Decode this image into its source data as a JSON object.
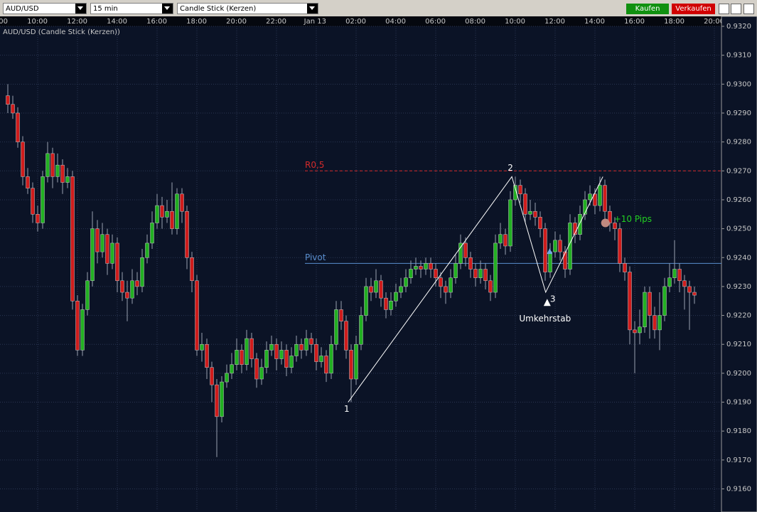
{
  "toolbar": {
    "symbol": "AUD/USD",
    "interval": "15 min",
    "chart_style": "Candle Stick (Kerzen)",
    "buy": "Kaufen",
    "sell": "Verkaufen"
  },
  "chart_data": {
    "type": "candlestick",
    "title": "AUD/USD (Candle Stick (Kerzen))",
    "time_labels": [
      "00",
      "10:00",
      "12:00",
      "14:00",
      "16:00",
      "18:00",
      "20:00",
      "22:00",
      "Jan 13",
      "02:00",
      "04:00",
      "06:00",
      "08:00",
      "10:00",
      "12:00",
      "14:00",
      "16:00",
      "18:00",
      "20:00"
    ],
    "up_color": "#22b022",
    "down_color": "#d01c1c",
    "candles": [
      [
        0.9296,
        0.93,
        0.929,
        0.9293
      ],
      [
        0.9293,
        0.9296,
        0.9288,
        0.929
      ],
      [
        0.929,
        0.9292,
        0.9278,
        0.928
      ],
      [
        0.928,
        0.9282,
        0.9265,
        0.9268
      ],
      [
        0.9268,
        0.9271,
        0.9262,
        0.9264
      ],
      [
        0.9264,
        0.9266,
        0.9252,
        0.9255
      ],
      [
        0.9255,
        0.9258,
        0.9249,
        0.9252
      ],
      [
        0.9252,
        0.927,
        0.925,
        0.9268
      ],
      [
        0.9268,
        0.928,
        0.9266,
        0.9276
      ],
      [
        0.9276,
        0.9278,
        0.9264,
        0.9268
      ],
      [
        0.9268,
        0.9276,
        0.9266,
        0.9272
      ],
      [
        0.9272,
        0.9274,
        0.9262,
        0.9266
      ],
      [
        0.9266,
        0.9271,
        0.9264,
        0.9268
      ],
      [
        0.9268,
        0.927,
        0.9222,
        0.9225
      ],
      [
        0.9225,
        0.9227,
        0.9206,
        0.9208
      ],
      [
        0.9208,
        0.9224,
        0.9206,
        0.9222
      ],
      [
        0.9222,
        0.9235,
        0.922,
        0.9232
      ],
      [
        0.9232,
        0.9256,
        0.923,
        0.925
      ],
      [
        0.925,
        0.9253,
        0.9238,
        0.9242
      ],
      [
        0.9242,
        0.9252,
        0.924,
        0.9248
      ],
      [
        0.9248,
        0.925,
        0.9234,
        0.9238
      ],
      [
        0.9238,
        0.9248,
        0.9236,
        0.9245
      ],
      [
        0.9245,
        0.9247,
        0.9228,
        0.9232
      ],
      [
        0.9232,
        0.9235,
        0.9225,
        0.9228
      ],
      [
        0.9228,
        0.9232,
        0.9218,
        0.9226
      ],
      [
        0.9226,
        0.9236,
        0.9224,
        0.9232
      ],
      [
        0.9232,
        0.9235,
        0.9227,
        0.923
      ],
      [
        0.923,
        0.9243,
        0.9228,
        0.924
      ],
      [
        0.924,
        0.9248,
        0.9238,
        0.9245
      ],
      [
        0.9245,
        0.9256,
        0.9243,
        0.9252
      ],
      [
        0.9252,
        0.9262,
        0.925,
        0.9258
      ],
      [
        0.9258,
        0.9261,
        0.925,
        0.9254
      ],
      [
        0.9254,
        0.926,
        0.9252,
        0.9256
      ],
      [
        0.9256,
        0.9266,
        0.9248,
        0.925
      ],
      [
        0.925,
        0.9264,
        0.9248,
        0.9262
      ],
      [
        0.9262,
        0.9264,
        0.9252,
        0.9256
      ],
      [
        0.9256,
        0.9258,
        0.9236,
        0.924
      ],
      [
        0.924,
        0.9242,
        0.9228,
        0.9232
      ],
      [
        0.9232,
        0.9234,
        0.9206,
        0.9208
      ],
      [
        0.9208,
        0.9214,
        0.9204,
        0.921
      ],
      [
        0.921,
        0.9212,
        0.9198,
        0.9202
      ],
      [
        0.9202,
        0.9204,
        0.919,
        0.9196
      ],
      [
        0.9196,
        0.9198,
        0.9171,
        0.9185
      ],
      [
        0.9185,
        0.9199,
        0.9183,
        0.9197
      ],
      [
        0.9197,
        0.9203,
        0.9195,
        0.92
      ],
      [
        0.92,
        0.9207,
        0.9198,
        0.9203
      ],
      [
        0.9203,
        0.9212,
        0.9201,
        0.9208
      ],
      [
        0.9208,
        0.921,
        0.92,
        0.9203
      ],
      [
        0.9203,
        0.9215,
        0.9201,
        0.9212
      ],
      [
        0.9212,
        0.9214,
        0.9202,
        0.9205
      ],
      [
        0.9205,
        0.9207,
        0.9195,
        0.9198
      ],
      [
        0.9198,
        0.9205,
        0.9196,
        0.9202
      ],
      [
        0.9202,
        0.9211,
        0.92,
        0.9208
      ],
      [
        0.9208,
        0.9213,
        0.9206,
        0.921
      ],
      [
        0.921,
        0.9212,
        0.9201,
        0.9205
      ],
      [
        0.9205,
        0.9211,
        0.9203,
        0.9208
      ],
      [
        0.9208,
        0.921,
        0.9199,
        0.9202
      ],
      [
        0.9202,
        0.9209,
        0.92,
        0.9206
      ],
      [
        0.9206,
        0.9213,
        0.9204,
        0.921
      ],
      [
        0.921,
        0.9212,
        0.9205,
        0.9208
      ],
      [
        0.9208,
        0.9215,
        0.9206,
        0.9212
      ],
      [
        0.9212,
        0.9214,
        0.9207,
        0.921
      ],
      [
        0.921,
        0.9212,
        0.9201,
        0.9204
      ],
      [
        0.9204,
        0.9209,
        0.9202,
        0.9206
      ],
      [
        0.9206,
        0.9208,
        0.9197,
        0.92
      ],
      [
        0.92,
        0.9213,
        0.9198,
        0.921
      ],
      [
        0.921,
        0.9225,
        0.9208,
        0.9222
      ],
      [
        0.9222,
        0.9225,
        0.9215,
        0.9218
      ],
      [
        0.9218,
        0.922,
        0.9205,
        0.9208
      ],
      [
        0.9208,
        0.921,
        0.919,
        0.9198
      ],
      [
        0.9198,
        0.9213,
        0.9196,
        0.921
      ],
      [
        0.921,
        0.9223,
        0.9208,
        0.922
      ],
      [
        0.922,
        0.9233,
        0.9218,
        0.923
      ],
      [
        0.923,
        0.9233,
        0.9225,
        0.9228
      ],
      [
        0.9228,
        0.9236,
        0.9226,
        0.9232
      ],
      [
        0.9232,
        0.9234,
        0.9223,
        0.9226
      ],
      [
        0.9226,
        0.9228,
        0.9219,
        0.9222
      ],
      [
        0.9222,
        0.9228,
        0.922,
        0.9225
      ],
      [
        0.9225,
        0.9231,
        0.9223,
        0.9228
      ],
      [
        0.9228,
        0.9233,
        0.9226,
        0.923
      ],
      [
        0.923,
        0.9236,
        0.9228,
        0.9233
      ],
      [
        0.9233,
        0.9239,
        0.9231,
        0.9236
      ],
      [
        0.9236,
        0.924,
        0.9234,
        0.9237
      ],
      [
        0.9237,
        0.9239,
        0.9233,
        0.9236
      ],
      [
        0.9236,
        0.924,
        0.9234,
        0.9238
      ],
      [
        0.9238,
        0.924,
        0.9233,
        0.9236
      ],
      [
        0.9236,
        0.9238,
        0.923,
        0.9233
      ],
      [
        0.9233,
        0.9235,
        0.9226,
        0.923
      ],
      [
        0.923,
        0.9232,
        0.9224,
        0.9228
      ],
      [
        0.9228,
        0.9236,
        0.9226,
        0.9233
      ],
      [
        0.9233,
        0.9241,
        0.9231,
        0.9238
      ],
      [
        0.9238,
        0.9248,
        0.9236,
        0.9245
      ],
      [
        0.9245,
        0.9247,
        0.9237,
        0.924
      ],
      [
        0.924,
        0.9242,
        0.9233,
        0.9236
      ],
      [
        0.9236,
        0.9238,
        0.923,
        0.9233
      ],
      [
        0.9233,
        0.9239,
        0.9231,
        0.9236
      ],
      [
        0.9236,
        0.9238,
        0.9229,
        0.9232
      ],
      [
        0.9232,
        0.9234,
        0.9225,
        0.9228
      ],
      [
        0.9228,
        0.9248,
        0.9226,
        0.9245
      ],
      [
        0.9245,
        0.9252,
        0.9243,
        0.9248
      ],
      [
        0.9248,
        0.925,
        0.9241,
        0.9244
      ],
      [
        0.9244,
        0.9263,
        0.9242,
        0.926
      ],
      [
        0.926,
        0.9268,
        0.9258,
        0.9265
      ],
      [
        0.9265,
        0.9267,
        0.9259,
        0.9262
      ],
      [
        0.9262,
        0.9264,
        0.9252,
        0.9255
      ],
      [
        0.9255,
        0.926,
        0.9253,
        0.9256
      ],
      [
        0.9256,
        0.9259,
        0.9251,
        0.9254
      ],
      [
        0.9254,
        0.9256,
        0.9247,
        0.925
      ],
      [
        0.925,
        0.9252,
        0.9232,
        0.9235
      ],
      [
        0.9235,
        0.9245,
        0.9233,
        0.9242
      ],
      [
        0.9242,
        0.9249,
        0.924,
        0.9246
      ],
      [
        0.9246,
        0.9248,
        0.9239,
        0.9242
      ],
      [
        0.9242,
        0.9244,
        0.9233,
        0.9236
      ],
      [
        0.9236,
        0.9255,
        0.9234,
        0.9252
      ],
      [
        0.9252,
        0.9254,
        0.9245,
        0.9248
      ],
      [
        0.9248,
        0.9258,
        0.9246,
        0.9255
      ],
      [
        0.9255,
        0.9263,
        0.9253,
        0.926
      ],
      [
        0.926,
        0.9265,
        0.9258,
        0.9262
      ],
      [
        0.9262,
        0.9264,
        0.9255,
        0.9258
      ],
      [
        0.9258,
        0.9268,
        0.9256,
        0.9265
      ],
      [
        0.9265,
        0.9267,
        0.9253,
        0.9256
      ],
      [
        0.9256,
        0.9258,
        0.9249,
        0.9252
      ],
      [
        0.9252,
        0.9254,
        0.9246,
        0.925
      ],
      [
        0.925,
        0.9252,
        0.9235,
        0.9238
      ],
      [
        0.9238,
        0.924,
        0.9232,
        0.9235
      ],
      [
        0.9235,
        0.9237,
        0.921,
        0.9215
      ],
      [
        0.9215,
        0.9218,
        0.92,
        0.9214
      ],
      [
        0.9214,
        0.9222,
        0.921,
        0.9216
      ],
      [
        0.9216,
        0.923,
        0.9214,
        0.9228
      ],
      [
        0.9228,
        0.923,
        0.9212,
        0.922
      ],
      [
        0.922,
        0.9223,
        0.9212,
        0.9215
      ],
      [
        0.9215,
        0.9228,
        0.9208,
        0.922
      ],
      [
        0.922,
        0.9233,
        0.9218,
        0.923
      ],
      [
        0.923,
        0.9238,
        0.9228,
        0.9233
      ],
      [
        0.9233,
        0.9246,
        0.9231,
        0.9236
      ],
      [
        0.9236,
        0.9238,
        0.9228,
        0.9232
      ],
      [
        0.9232,
        0.9234,
        0.9222,
        0.923
      ],
      [
        0.923,
        0.9232,
        0.9215,
        0.9228
      ],
      [
        0.9228,
        0.923,
        0.9224,
        0.9227
      ]
    ],
    "ylim": [
      0.91525,
      0.932
    ],
    "yticks": [
      {
        "value": 0.916,
        "label": "0.9160"
      },
      {
        "value": 0.917,
        "label": "0.9170"
      },
      {
        "value": 0.918,
        "label": "0.9180"
      },
      {
        "value": 0.919,
        "label": "0.9190"
      },
      {
        "value": 0.92,
        "label": "0.9200"
      },
      {
        "value": 0.921,
        "label": "0.9210"
      },
      {
        "value": 0.922,
        "label": "0.9220"
      },
      {
        "value": 0.923,
        "label": "0.9230"
      },
      {
        "value": 0.924,
        "label": "0.9240"
      },
      {
        "value": 0.925,
        "label": "0.9250"
      },
      {
        "value": 0.926,
        "label": "0.9260"
      },
      {
        "value": 0.927,
        "label": "0.9270"
      },
      {
        "value": 0.928,
        "label": "0.9280"
      },
      {
        "value": 0.929,
        "label": "0.9290"
      },
      {
        "value": 0.93,
        "label": "0.9300"
      },
      {
        "value": 0.931,
        "label": "0.9310"
      },
      {
        "value": 0.932,
        "label": "0.9320"
      }
    ],
    "grid": true,
    "levels": [
      {
        "label": "R0,5",
        "value": 0.927,
        "color": "#d42a2a",
        "dashed": true
      },
      {
        "label": "Pivot",
        "value": 0.9238,
        "color": "#5a8fd0",
        "dashed": false
      }
    ],
    "zigzag": [
      {
        "label": "1",
        "index": 68.4,
        "value": 0.919
      },
      {
        "label": "2",
        "index": 101.3,
        "value": 0.9268
      },
      {
        "label": "3",
        "index": 108.1,
        "value": 0.9228
      },
      {
        "index": 119.6,
        "value": 0.9268
      }
    ],
    "signal": {
      "label": "Umkehrstab",
      "index": 108.4,
      "value": 0.9224
    },
    "entry": {
      "index": 108.9,
      "value": 0.9242
    },
    "target": {
      "label": "+10 Pips",
      "index": 120.1,
      "value": 0.9252
    }
  }
}
